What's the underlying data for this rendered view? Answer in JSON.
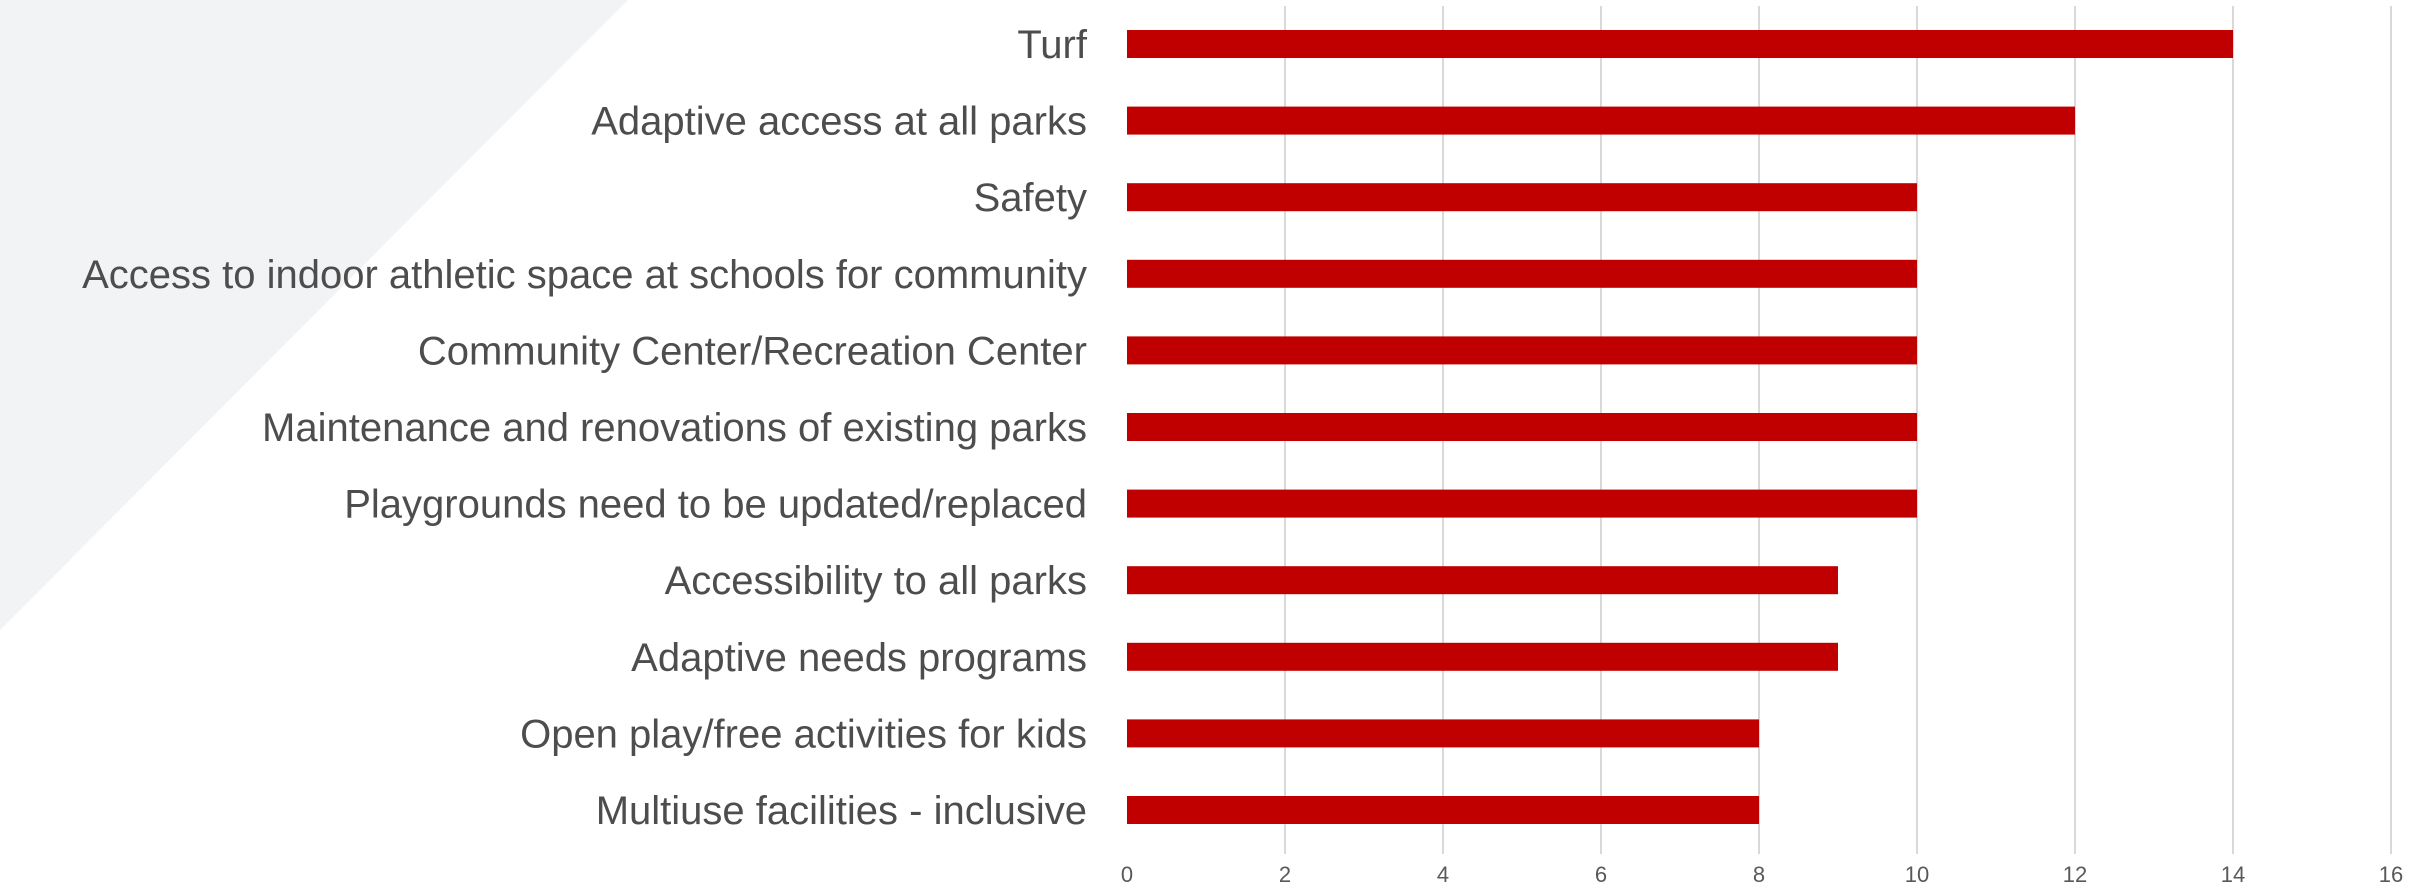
{
  "chart_data": {
    "type": "bar",
    "orientation": "horizontal",
    "categories": [
      "Turf",
      "Adaptive access at all parks",
      "Safety",
      "Access to indoor athletic space at schools for community",
      "Community Center/Recreation Center",
      "Maintenance and renovations of existing parks",
      "Playgrounds need to be updated/replaced",
      "Accessibility to all parks",
      "Adaptive needs programs",
      "Open play/free activities for kids",
      "Multiuse facilities - inclusive"
    ],
    "values": [
      14,
      12,
      10,
      10,
      10,
      10,
      10,
      9,
      9,
      8,
      8
    ],
    "xlim": [
      0,
      16
    ],
    "xticks": [
      "0",
      "2",
      "4",
      "6",
      "8",
      "10",
      "12",
      "14",
      "16"
    ],
    "title": "",
    "xlabel": "",
    "ylabel": "",
    "grid": "vertical",
    "legend": "none",
    "bar_color": "#c00000",
    "grid_color": "#d9d9d9",
    "label_color": "#4d4d4d",
    "tick_color": "#595959",
    "background_shape_color": "#f2f3f5"
  }
}
